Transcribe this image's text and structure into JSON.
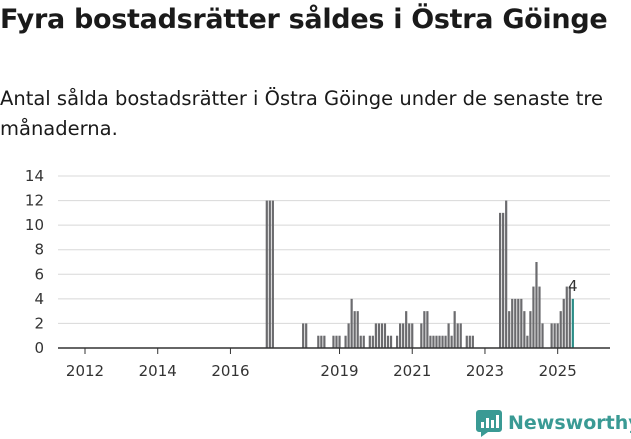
{
  "title": "Fyra bostadsrätter såldes i Östra Göinge",
  "subtitle": "Antal sålda bostadsrätter i Östra Göinge under de senaste tre månaderna.",
  "brand": "Newsworthy",
  "colors": {
    "bar": "#6b6b6e",
    "highlight": "#2a8c86",
    "brand": "#3a9a94",
    "axis": "#333333",
    "grid": "#d8d8d8"
  },
  "chart_data": {
    "type": "bar",
    "title": "Fyra bostadsrätter såldes i Östra Göinge",
    "xlabel": "",
    "ylabel": "",
    "ylim": [
      0,
      14
    ],
    "yticks": [
      "0",
      "2",
      "4",
      "6",
      "8",
      "10",
      "12",
      "14"
    ],
    "xticks": [
      {
        "label": "2012",
        "month": 0
      },
      {
        "label": "2014",
        "month": 24
      },
      {
        "label": "2016",
        "month": 48
      },
      {
        "label": "2019",
        "month": 84
      },
      {
        "label": "2021",
        "month": 108
      },
      {
        "label": "2023",
        "month": 132
      },
      {
        "label": "2025",
        "month": 156
      }
    ],
    "x_unit": "months since Jan 2012",
    "series": [
      {
        "name": "Sålda bostadsrätter",
        "bars": [
          {
            "m": 60,
            "v": 12
          },
          {
            "m": 61,
            "v": 12
          },
          {
            "m": 62,
            "v": 12
          },
          {
            "m": 72,
            "v": 2
          },
          {
            "m": 73,
            "v": 2
          },
          {
            "m": 77,
            "v": 1
          },
          {
            "m": 78,
            "v": 1
          },
          {
            "m": 79,
            "v": 1
          },
          {
            "m": 82,
            "v": 1
          },
          {
            "m": 83,
            "v": 1
          },
          {
            "m": 84,
            "v": 1
          },
          {
            "m": 86,
            "v": 1
          },
          {
            "m": 87,
            "v": 2
          },
          {
            "m": 88,
            "v": 4
          },
          {
            "m": 89,
            "v": 3
          },
          {
            "m": 90,
            "v": 3
          },
          {
            "m": 91,
            "v": 1
          },
          {
            "m": 92,
            "v": 1
          },
          {
            "m": 94,
            "v": 1
          },
          {
            "m": 95,
            "v": 1
          },
          {
            "m": 96,
            "v": 2
          },
          {
            "m": 97,
            "v": 2
          },
          {
            "m": 98,
            "v": 2
          },
          {
            "m": 99,
            "v": 2
          },
          {
            "m": 100,
            "v": 1
          },
          {
            "m": 101,
            "v": 1
          },
          {
            "m": 103,
            "v": 1
          },
          {
            "m": 104,
            "v": 2
          },
          {
            "m": 105,
            "v": 2
          },
          {
            "m": 106,
            "v": 3
          },
          {
            "m": 107,
            "v": 2
          },
          {
            "m": 108,
            "v": 2
          },
          {
            "m": 111,
            "v": 2
          },
          {
            "m": 112,
            "v": 3
          },
          {
            "m": 113,
            "v": 3
          },
          {
            "m": 114,
            "v": 1
          },
          {
            "m": 115,
            "v": 1
          },
          {
            "m": 116,
            "v": 1
          },
          {
            "m": 117,
            "v": 1
          },
          {
            "m": 118,
            "v": 1
          },
          {
            "m": 119,
            "v": 1
          },
          {
            "m": 120,
            "v": 2
          },
          {
            "m": 121,
            "v": 1
          },
          {
            "m": 122,
            "v": 3
          },
          {
            "m": 123,
            "v": 2
          },
          {
            "m": 124,
            "v": 2
          },
          {
            "m": 126,
            "v": 1
          },
          {
            "m": 127,
            "v": 1
          },
          {
            "m": 128,
            "v": 1
          },
          {
            "m": 137,
            "v": 11
          },
          {
            "m": 138,
            "v": 11
          },
          {
            "m": 139,
            "v": 12
          },
          {
            "m": 140,
            "v": 3
          },
          {
            "m": 141,
            "v": 4
          },
          {
            "m": 142,
            "v": 4
          },
          {
            "m": 143,
            "v": 4
          },
          {
            "m": 144,
            "v": 4
          },
          {
            "m": 145,
            "v": 3
          },
          {
            "m": 146,
            "v": 1
          },
          {
            "m": 147,
            "v": 3
          },
          {
            "m": 148,
            "v": 5
          },
          {
            "m": 149,
            "v": 7
          },
          {
            "m": 150,
            "v": 5
          },
          {
            "m": 151,
            "v": 2
          },
          {
            "m": 154,
            "v": 2
          },
          {
            "m": 155,
            "v": 2
          },
          {
            "m": 156,
            "v": 2
          },
          {
            "m": 157,
            "v": 3
          },
          {
            "m": 158,
            "v": 4
          },
          {
            "m": 159,
            "v": 5
          },
          {
            "m": 160,
            "v": 5
          },
          {
            "m": 161,
            "v": 4
          }
        ]
      }
    ],
    "highlight": {
      "m": 161,
      "v": 4,
      "label": "4"
    }
  }
}
